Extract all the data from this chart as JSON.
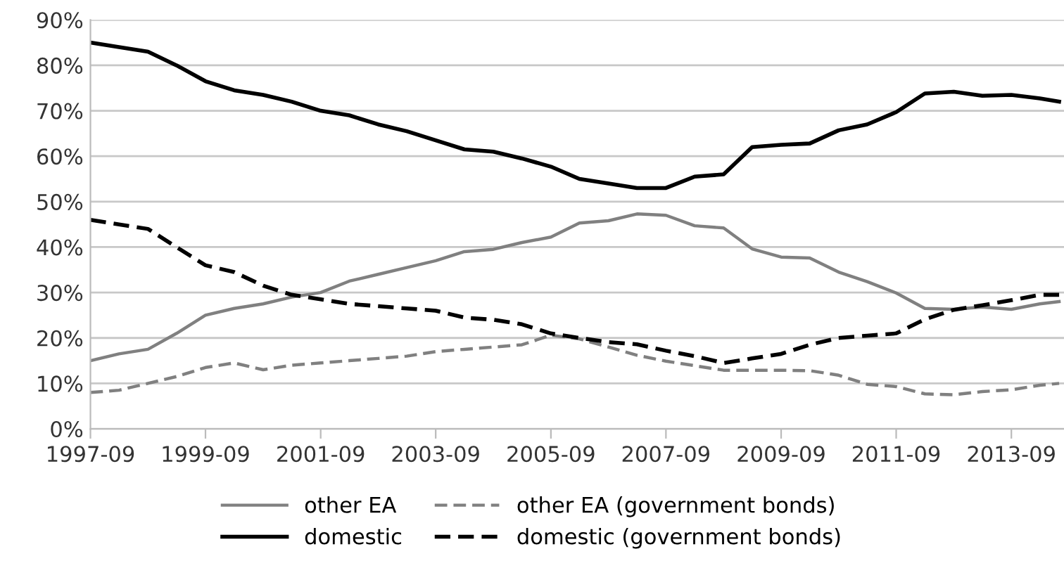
{
  "chart_data": {
    "type": "line",
    "x": [
      "1997-09",
      "1998-03",
      "1998-09",
      "1999-03",
      "1999-09",
      "2000-03",
      "2000-09",
      "2001-03",
      "2001-09",
      "2002-03",
      "2002-09",
      "2003-03",
      "2003-09",
      "2004-03",
      "2004-09",
      "2005-03",
      "2005-09",
      "2006-03",
      "2006-09",
      "2007-03",
      "2007-09",
      "2008-03",
      "2008-09",
      "2009-03",
      "2009-09",
      "2010-03",
      "2010-09",
      "2011-03",
      "2011-09",
      "2012-03",
      "2012-09",
      "2013-03",
      "2013-09",
      "2014-03",
      "2014-07"
    ],
    "series": [
      {
        "name": "other EA",
        "color": "#808080",
        "line_style": "solid",
        "values": [
          15,
          16.5,
          17.5,
          21,
          25,
          26.5,
          27.5,
          29,
          30,
          32.5,
          34,
          35.5,
          37,
          39,
          39.5,
          41,
          42.2,
          45.3,
          45.8,
          47.3,
          47,
          44.7,
          44.2,
          39.6,
          37.8,
          37.6,
          34.5,
          32.4,
          29.9,
          26.5,
          26.3,
          26.8,
          26.3,
          27.5,
          28
        ]
      },
      {
        "name": "domestic",
        "color": "#000000",
        "line_style": "solid",
        "values": [
          85,
          84,
          83,
          80,
          76.5,
          74.5,
          73.5,
          72,
          70,
          69,
          67,
          65.5,
          63.5,
          61.5,
          61,
          59.5,
          57.7,
          55,
          54,
          53,
          53,
          55.5,
          56,
          62,
          62.5,
          62.8,
          65.7,
          67,
          69.7,
          73.8,
          74.2,
          73.3,
          73.5,
          72.7,
          72
        ]
      },
      {
        "name": "other EA (government bonds)",
        "color": "#808080",
        "line_style": "dashed",
        "values": [
          8,
          8.5,
          10,
          11.5,
          13.5,
          14.5,
          13,
          14,
          14.5,
          15,
          15.5,
          16,
          17,
          17.5,
          18,
          18.5,
          20.6,
          19.8,
          18,
          16.2,
          14.9,
          13.9,
          12.9,
          12.9,
          12.9,
          12.8,
          11.8,
          9.8,
          9.3,
          7.7,
          7.5,
          8.2,
          8.6,
          9.6,
          10
        ]
      },
      {
        "name": "domestic (government bonds)",
        "color": "#000000",
        "line_style": "dashed",
        "values": [
          46,
          45,
          44,
          40,
          36,
          34.5,
          31.5,
          29.5,
          28.5,
          27.5,
          27,
          26.5,
          26,
          24.5,
          24,
          23,
          21,
          20,
          19.1,
          18.6,
          17.2,
          16,
          14.5,
          15.5,
          16.5,
          18.5,
          20,
          20.5,
          21,
          24.1,
          26.2,
          27.2,
          28.3,
          29.5,
          29.5
        ]
      }
    ],
    "xlim": [
      "1997-09",
      "2014-08"
    ],
    "xticks": [
      "1997-09",
      "1999-09",
      "2001-09",
      "2003-09",
      "2005-09",
      "2007-09",
      "2009-09",
      "2011-09",
      "2013-09"
    ],
    "ylim": [
      0,
      90
    ],
    "yticks": [
      {
        "value": 0,
        "label": "0%"
      },
      {
        "value": 10,
        "label": "10%"
      },
      {
        "value": 20,
        "label": "20%"
      },
      {
        "value": 30,
        "label": "30%"
      },
      {
        "value": 40,
        "label": "40%"
      },
      {
        "value": 50,
        "label": "50%"
      },
      {
        "value": 60,
        "label": "60%"
      },
      {
        "value": 70,
        "label": "70%"
      },
      {
        "value": 80,
        "label": "80%"
      },
      {
        "value": 90,
        "label": "90%"
      }
    ],
    "grid": "y",
    "legend": "bottom",
    "marker": "none"
  }
}
